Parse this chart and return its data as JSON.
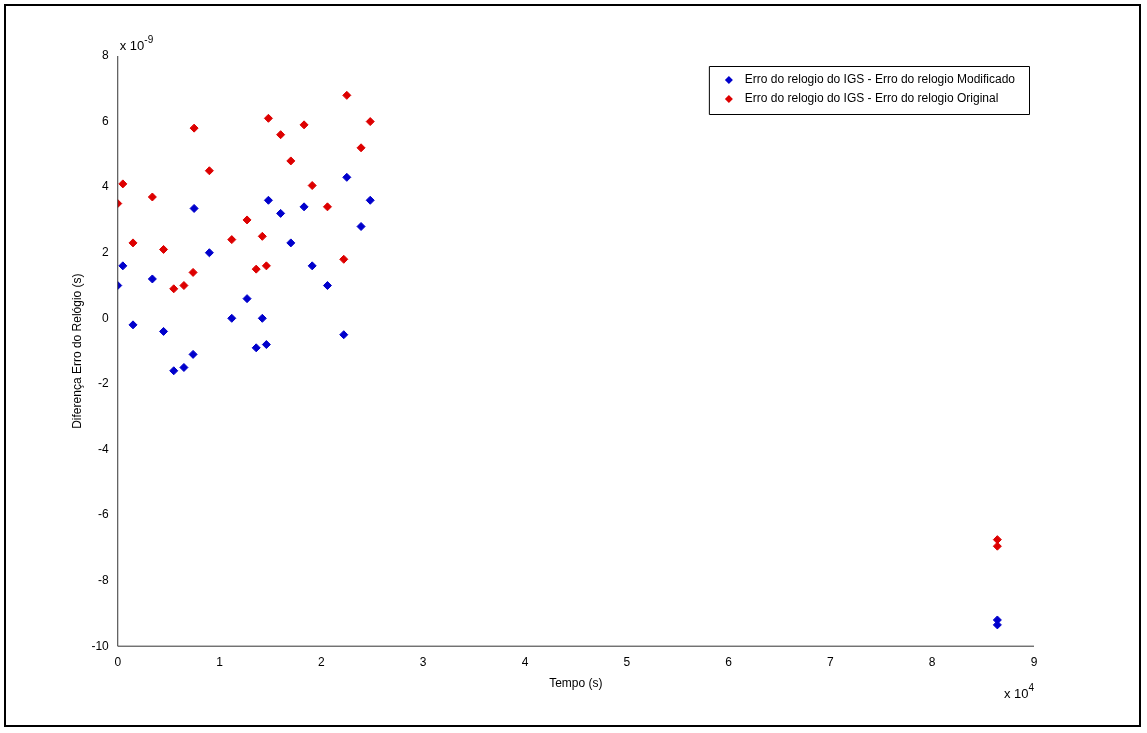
{
  "chart_data": {
    "type": "scatter",
    "xlabel": "Tempo (s)",
    "ylabel": "Diferença Erro do Relógio (s)",
    "xlim": [
      0,
      9
    ],
    "xticks": [
      0,
      1,
      2,
      3,
      4,
      5,
      6,
      7,
      8,
      9
    ],
    "ylim": [
      -10,
      8
    ],
    "yticks": [
      -10,
      -8,
      -6,
      -4,
      -2,
      0,
      2,
      4,
      6,
      8
    ],
    "grid": false,
    "legend": "top right",
    "marker": "diamond",
    "annotations": [
      "x 10$^{-9}$",
      "x 10$^{4}$"
    ],
    "series": [
      {
        "name": "Erro do relogio do IGS - Erro do relogio Modificado",
        "color": "#0000cc",
        "x": [
          0,
          0.05,
          0.15,
          0.34,
          0.45,
          0.55,
          0.65,
          0.74,
          0.75,
          0.9,
          1.12,
          1.27,
          1.36,
          1.42,
          1.46,
          1.48,
          1.6,
          1.7,
          1.83,
          1.91,
          2.06,
          2.22,
          2.25,
          2.39,
          2.48,
          8.64,
          8.64
        ],
        "values": [
          1.0,
          1.6,
          -0.2,
          1.2,
          -0.4,
          -1.6,
          -1.5,
          -1.1,
          3.35,
          2.0,
          0.0,
          0.6,
          -0.9,
          0.0,
          -0.8,
          3.6,
          3.2,
          2.3,
          3.4,
          1.6,
          1.0,
          -0.5,
          4.3,
          2.8,
          3.6,
          -9.2,
          -9.35
        ]
      },
      {
        "name": "Erro do relogio do IGS - Erro do relogio Original",
        "color": "#dd0000",
        "x": [
          0,
          0.05,
          0.15,
          0.34,
          0.45,
          0.55,
          0.65,
          0.74,
          0.75,
          0.9,
          1.12,
          1.27,
          1.36,
          1.42,
          1.46,
          1.48,
          1.6,
          1.7,
          1.83,
          1.91,
          2.06,
          2.22,
          2.25,
          2.39,
          2.48,
          8.64,
          8.64
        ],
        "values": [
          3.5,
          4.1,
          2.3,
          3.7,
          2.1,
          0.9,
          1.0,
          1.4,
          5.8,
          4.5,
          2.4,
          3.0,
          1.5,
          2.5,
          1.6,
          6.1,
          5.6,
          4.8,
          5.9,
          4.05,
          3.4,
          1.8,
          6.8,
          5.2,
          6.0,
          -6.75,
          -6.95
        ]
      }
    ]
  }
}
